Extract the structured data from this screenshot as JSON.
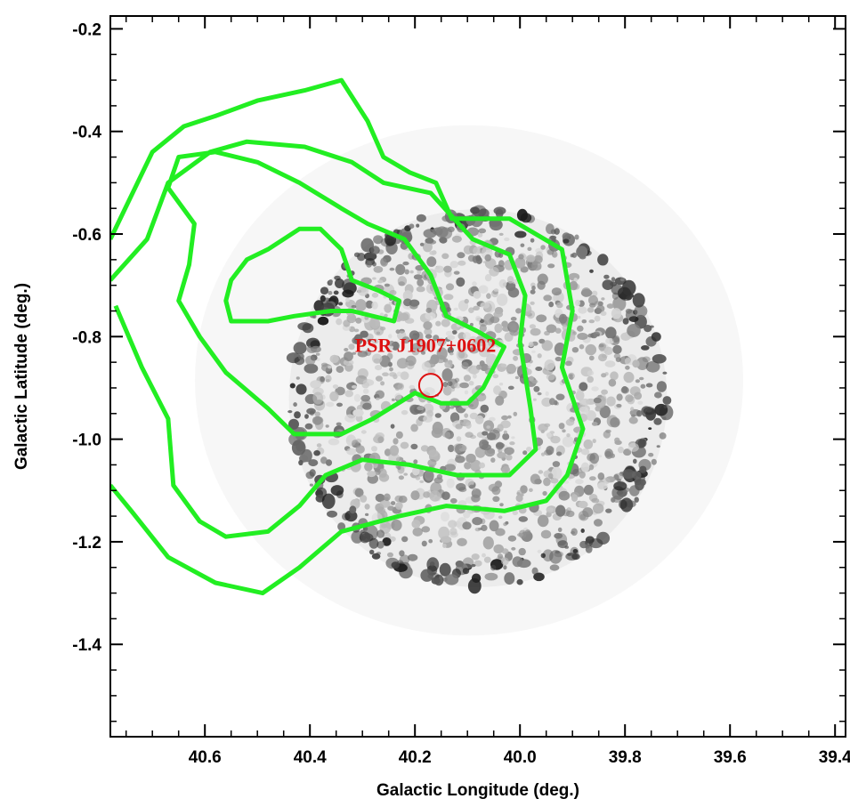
{
  "chart_data": {
    "type": "scatter",
    "xlabel": "Galactic Longitude (deg.)",
    "ylabel": "Galactic Latitude (deg.)",
    "xlim": [
      40.78,
      39.38
    ],
    "ylim": [
      -1.58,
      -0.175
    ],
    "x_reversed": true,
    "xticks": [
      {
        "value": 40.6,
        "label": "40.6"
      },
      {
        "value": 40.4,
        "label": "40.4"
      },
      {
        "value": 40.2,
        "label": "40.2"
      },
      {
        "value": 40.0,
        "label": "40.0"
      },
      {
        "value": 39.8,
        "label": "39.8"
      },
      {
        "value": 39.6,
        "label": "39.6"
      },
      {
        "value": 39.4,
        "label": "39.4"
      }
    ],
    "yticks": [
      {
        "value": -0.2,
        "label": "-0.2"
      },
      {
        "value": -0.4,
        "label": "-0.4"
      },
      {
        "value": -0.6,
        "label": "-0.6"
      },
      {
        "value": -0.8,
        "label": "-0.8"
      },
      {
        "value": -1.0,
        "label": "-1.0"
      },
      {
        "value": -1.2,
        "label": "-1.2"
      },
      {
        "value": -1.4,
        "label": "-1.4"
      }
    ],
    "grid": false,
    "background_image": {
      "description": "grayscale X-ray intensity map, roughly circular field",
      "center": [
        40.08,
        -0.92
      ],
      "radius_deg": 0.36,
      "colormap": "gray_r"
    },
    "contour_color": "#22ee22",
    "contours": [
      {
        "level": 1,
        "points": [
          [
            40.78,
            -0.61
          ],
          [
            40.7,
            -0.44
          ],
          [
            40.64,
            -0.39
          ],
          [
            40.58,
            -0.37
          ],
          [
            40.5,
            -0.34
          ],
          [
            40.41,
            -0.32
          ],
          [
            40.34,
            -0.3
          ],
          [
            40.29,
            -0.38
          ],
          [
            40.26,
            -0.45
          ],
          [
            40.21,
            -0.48
          ],
          [
            40.16,
            -0.5
          ],
          [
            40.13,
            -0.57
          ],
          [
            40.02,
            -0.57
          ],
          [
            39.92,
            -0.63
          ],
          [
            39.9,
            -0.75
          ],
          [
            39.92,
            -0.86
          ],
          [
            39.88,
            -0.98
          ],
          [
            39.91,
            -1.07
          ],
          [
            39.95,
            -1.12
          ],
          [
            40.03,
            -1.14
          ],
          [
            40.14,
            -1.13
          ],
          [
            40.23,
            -1.15
          ],
          [
            40.34,
            -1.18
          ],
          [
            40.42,
            -1.25
          ],
          [
            40.49,
            -1.3
          ],
          [
            40.58,
            -1.28
          ],
          [
            40.67,
            -1.23
          ],
          [
            40.74,
            -1.14
          ],
          [
            40.78,
            -1.09
          ]
        ]
      },
      {
        "level": 2,
        "points": [
          [
            40.78,
            -0.69
          ],
          [
            40.71,
            -0.61
          ],
          [
            40.67,
            -0.5
          ],
          [
            40.59,
            -0.44
          ],
          [
            40.52,
            -0.42
          ],
          [
            40.41,
            -0.43
          ],
          [
            40.32,
            -0.46
          ],
          [
            40.26,
            -0.5
          ],
          [
            40.17,
            -0.52
          ],
          [
            40.09,
            -0.61
          ],
          [
            40.02,
            -0.64
          ],
          [
            39.99,
            -0.72
          ],
          [
            40.0,
            -0.81
          ],
          [
            39.98,
            -0.94
          ],
          [
            39.97,
            -1.02
          ],
          [
            40.02,
            -1.07
          ],
          [
            40.12,
            -1.07
          ],
          [
            40.21,
            -1.05
          ],
          [
            40.3,
            -1.04
          ],
          [
            40.37,
            -1.07
          ],
          [
            40.42,
            -1.13
          ],
          [
            40.48,
            -1.18
          ],
          [
            40.56,
            -1.19
          ],
          [
            40.61,
            -1.16
          ],
          [
            40.66,
            -1.09
          ],
          [
            40.67,
            -0.96
          ],
          [
            40.72,
            -0.86
          ],
          [
            40.77,
            -0.74
          ]
        ]
      },
      {
        "level": 3,
        "points": [
          [
            40.67,
            -0.51
          ],
          [
            40.65,
            -0.45
          ],
          [
            40.58,
            -0.44
          ],
          [
            40.5,
            -0.46
          ],
          [
            40.42,
            -0.5
          ],
          [
            40.34,
            -0.55
          ],
          [
            40.29,
            -0.58
          ],
          [
            40.22,
            -0.61
          ],
          [
            40.17,
            -0.68
          ],
          [
            40.14,
            -0.76
          ],
          [
            40.08,
            -0.79
          ],
          [
            40.03,
            -0.82
          ],
          [
            40.07,
            -0.9
          ],
          [
            40.1,
            -0.93
          ],
          [
            40.15,
            -0.93
          ],
          [
            40.2,
            -0.91
          ],
          [
            40.28,
            -0.96
          ],
          [
            40.34,
            -0.99
          ],
          [
            40.43,
            -0.99
          ],
          [
            40.48,
            -0.94
          ],
          [
            40.56,
            -0.87
          ],
          [
            40.61,
            -0.8
          ],
          [
            40.65,
            -0.73
          ],
          [
            40.63,
            -0.66
          ],
          [
            40.62,
            -0.58
          ]
        ]
      },
      {
        "level": 4,
        "points": [
          [
            40.55,
            -0.77
          ],
          [
            40.48,
            -0.77
          ],
          [
            40.43,
            -0.76
          ],
          [
            40.36,
            -0.75
          ],
          [
            40.32,
            -0.75
          ],
          [
            40.24,
            -0.77
          ],
          [
            40.23,
            -0.73
          ],
          [
            40.27,
            -0.71
          ],
          [
            40.32,
            -0.69
          ],
          [
            40.34,
            -0.63
          ],
          [
            40.38,
            -0.59
          ],
          [
            40.42,
            -0.59
          ],
          [
            40.45,
            -0.61
          ],
          [
            40.48,
            -0.63
          ],
          [
            40.52,
            -0.65
          ],
          [
            40.55,
            -0.69
          ],
          [
            40.56,
            -0.73
          ]
        ]
      }
    ],
    "annotations": [
      {
        "type": "marker",
        "shape": "circle",
        "x": 40.17,
        "y": -0.895,
        "color": "#dd1111"
      },
      {
        "type": "text",
        "text": "PSR J1907+0602",
        "x": 40.18,
        "y": -0.83,
        "color": "#dd1111"
      }
    ]
  }
}
